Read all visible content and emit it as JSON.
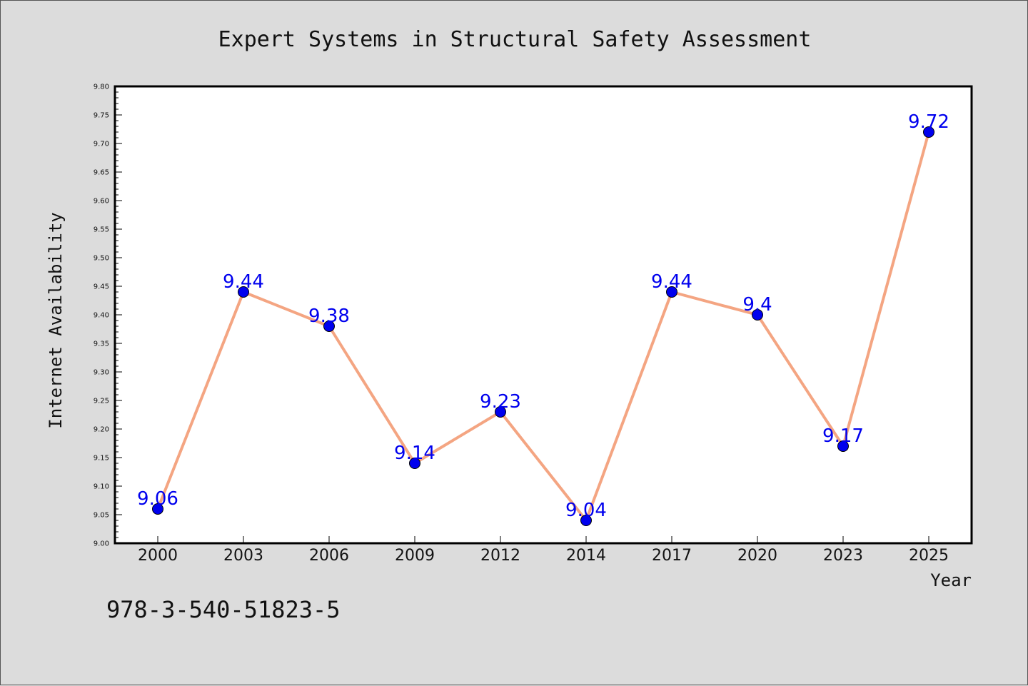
{
  "chart_data": {
    "type": "line",
    "title": "Expert Systems in Structural Safety Assessment",
    "xlabel": "Year",
    "ylabel": "Internet Availability",
    "categories": [
      "2000",
      "2003",
      "2006",
      "2009",
      "2012",
      "2014",
      "2017",
      "2020",
      "2023",
      "2025"
    ],
    "series": [
      {
        "values": [
          9.06,
          9.44,
          9.38,
          9.14,
          9.23,
          9.04,
          9.44,
          9.4,
          9.17,
          9.72
        ],
        "data_labels": [
          "9.06",
          "9.44",
          "9.38",
          "9.14",
          "9.23",
          "9.04",
          "9.44",
          "9.4",
          "9.17",
          "9.72"
        ]
      }
    ],
    "ylim": [
      9.0,
      9.8
    ],
    "yticks": [
      "9.00",
      "9.05",
      "9.10",
      "9.15",
      "9.20",
      "9.25",
      "9.30",
      "9.35",
      "9.40",
      "9.45",
      "9.50",
      "9.55",
      "9.60",
      "9.65",
      "9.70",
      "9.75",
      "9.80"
    ],
    "grid": false,
    "legend": "none",
    "colors": {
      "line": "#f4a582",
      "marker": "#0000ee",
      "marker_edge": "#000000",
      "data_label": "#0000ee",
      "plot_background": "#ffffff",
      "figure_background": "#dcdcdc"
    }
  },
  "footer": {
    "isbn": "978-3-540-51823-5"
  }
}
